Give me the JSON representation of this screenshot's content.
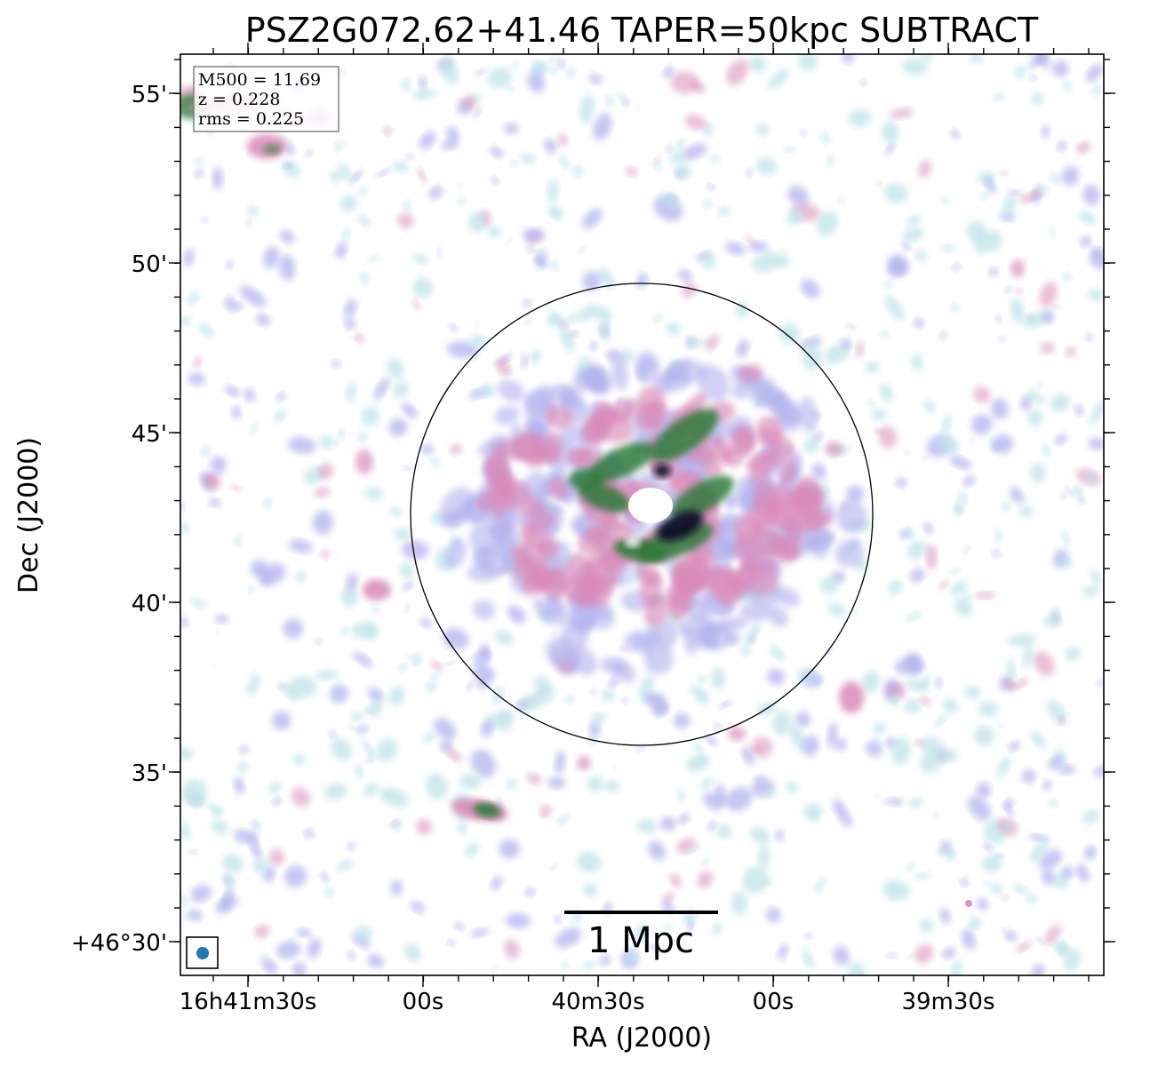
{
  "title": "PSZ2G072.62+41.46 TAPER=50kpc SUBTRACT",
  "axes": {
    "xlabel": "RA (J2000)",
    "ylabel": "Dec (J2000)",
    "x_ticks": [
      "16h41m30s",
      "00s",
      "40m30s",
      "00s",
      "39m30s"
    ],
    "y_ticks": [
      "55'",
      "50'",
      "45'",
      "40'",
      "35'",
      "+46°30'"
    ]
  },
  "info_box": {
    "line1": "M500 = 11.69",
    "line2": "z = 0.228",
    "line3": "rms = 0.225"
  },
  "scalebar": {
    "label": "1 Mpc"
  },
  "colors": {
    "faint": "#bfe3ea",
    "low": "#b3b3ef",
    "mid": "#d98ab8",
    "high": "#2f7a3a",
    "peak": "#0d0d26",
    "beam": "#1f77b4"
  },
  "icons": {
    "beam": "filled-circle-beam-icon",
    "circle": "r500-circle-icon"
  }
}
